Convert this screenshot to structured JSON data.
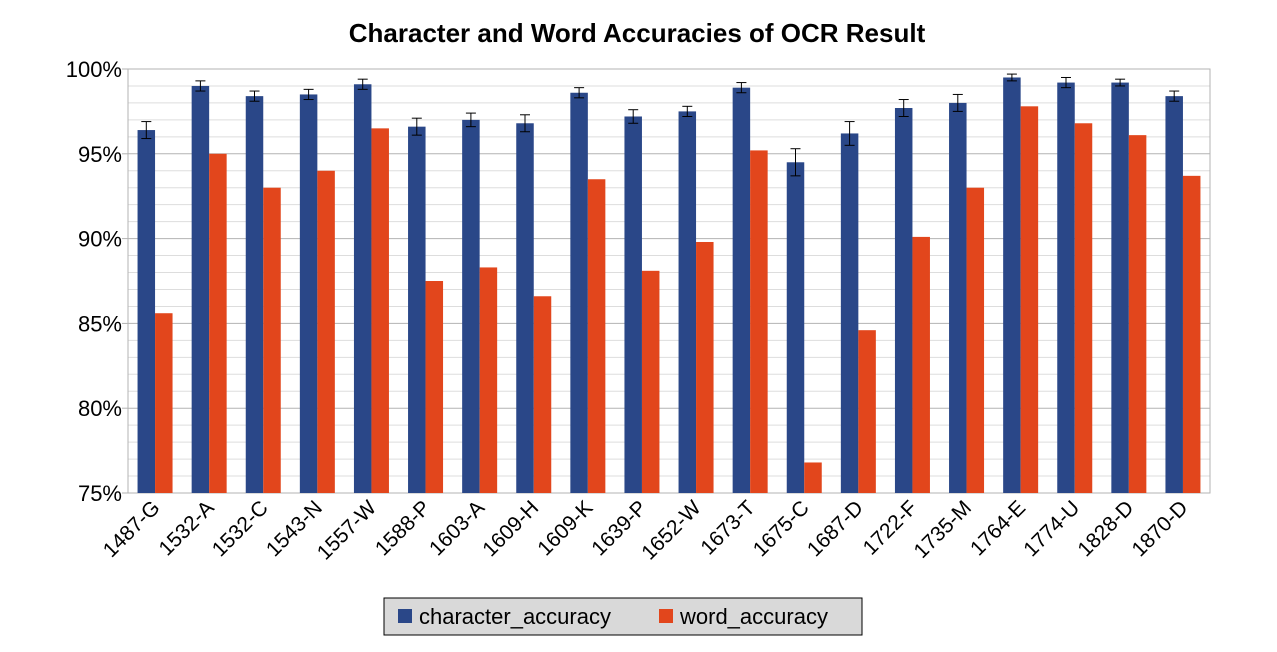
{
  "chart_data": {
    "type": "bar",
    "title": "Character and Word Accuracies of OCR Result",
    "xlabel": "",
    "ylabel": "",
    "ylim": [
      75,
      100
    ],
    "yticks": [
      75,
      80,
      85,
      90,
      95,
      100
    ],
    "ytick_labels": [
      "75%",
      "80%",
      "85%",
      "90%",
      "95%",
      "100%"
    ],
    "grid": true,
    "legend_position": "bottom",
    "categories": [
      "1487-G",
      "1532-A",
      "1532-C",
      "1543-N",
      "1557-W",
      "1588-P",
      "1603-A",
      "1609-H",
      "1609-K",
      "1639-P",
      "1652-W",
      "1673-T",
      "1675-C",
      "1687-D",
      "1722-F",
      "1735-M",
      "1764-E",
      "1774-U",
      "1828-D",
      "1870-D"
    ],
    "series": [
      {
        "name": "character_accuracy",
        "color": "#2a4788",
        "values": [
          96.4,
          99.0,
          98.4,
          98.5,
          99.1,
          96.6,
          97.0,
          96.8,
          98.6,
          97.2,
          97.5,
          98.9,
          94.5,
          96.2,
          97.7,
          98.0,
          99.5,
          99.2,
          99.2,
          98.4
        ],
        "error": [
          0.5,
          0.3,
          0.3,
          0.3,
          0.3,
          0.5,
          0.4,
          0.5,
          0.3,
          0.4,
          0.3,
          0.3,
          0.8,
          0.7,
          0.5,
          0.5,
          0.2,
          0.3,
          0.2,
          0.3
        ]
      },
      {
        "name": "word_accuracy",
        "color": "#e2461c",
        "values": [
          85.6,
          95.0,
          93.0,
          94.0,
          96.5,
          87.5,
          88.3,
          86.6,
          93.5,
          88.1,
          89.8,
          95.2,
          76.8,
          84.6,
          90.1,
          93.0,
          97.8,
          96.8,
          96.1,
          93.7
        ]
      }
    ]
  }
}
